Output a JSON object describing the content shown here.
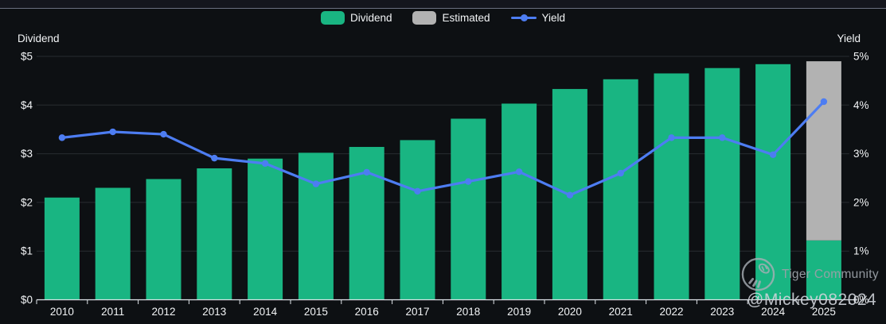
{
  "legend": {
    "dividend": "Dividend",
    "estimated": "Estimated",
    "yield": "Yield"
  },
  "watermark": {
    "community": "Tiger Community",
    "handle": "@Mickey082024"
  },
  "chart_data": {
    "type": "bar+line",
    "categories": [
      "2010",
      "2011",
      "2012",
      "2013",
      "2014",
      "2015",
      "2016",
      "2017",
      "2018",
      "2019",
      "2020",
      "2021",
      "2022",
      "2023",
      "2024",
      "2025"
    ],
    "series": [
      {
        "name": "Dividend",
        "type": "bar",
        "axis": "left",
        "values": [
          2.1,
          2.3,
          2.48,
          2.7,
          2.9,
          3.02,
          3.14,
          3.28,
          3.72,
          4.03,
          4.33,
          4.53,
          4.65,
          4.76,
          4.84,
          1.22
        ]
      },
      {
        "name": "Estimated",
        "type": "bar",
        "axis": "left",
        "stacked_on": "Dividend",
        "values": [
          0,
          0,
          0,
          0,
          0,
          0,
          0,
          0,
          0,
          0,
          0,
          0,
          0,
          0,
          0,
          3.68
        ]
      },
      {
        "name": "Yield",
        "type": "line",
        "axis": "right",
        "values": [
          3.33,
          3.45,
          3.4,
          2.91,
          2.8,
          2.38,
          2.62,
          2.23,
          2.43,
          2.63,
          2.15,
          2.6,
          3.33,
          3.33,
          2.98,
          4.07
        ]
      }
    ],
    "left_axis": {
      "title": "Dividend",
      "ticks": [
        "$0",
        "$1",
        "$2",
        "$3",
        "$4",
        "$5"
      ],
      "range": [
        0,
        5
      ]
    },
    "right_axis": {
      "title": "Yield",
      "ticks": [
        "0%",
        "1%",
        "2%",
        "3%",
        "4%",
        "5%"
      ],
      "range": [
        0,
        5
      ]
    },
    "grid": "horizontal",
    "legend_position": "top-center",
    "colors": {
      "dividend": "#19b582",
      "estimated": "#b2b2b2",
      "yield": "#4d7df2",
      "grid": "#282c31",
      "axis": "#dfe3e8",
      "text": "#f2f4f6"
    }
  }
}
